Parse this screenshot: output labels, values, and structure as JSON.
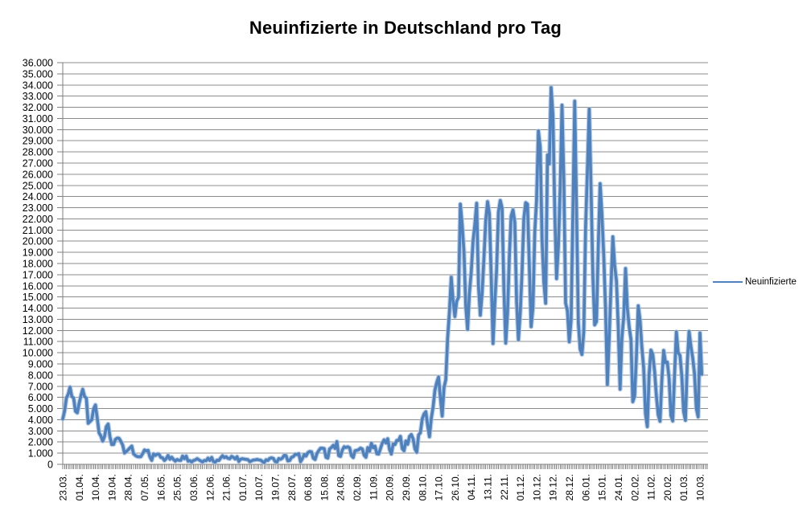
{
  "title": "Neuinfizierte in Deutschland pro Tag",
  "legend": {
    "label": "Neuinfizierte"
  },
  "colors": {
    "line": "#4F81BD",
    "line_halo": "#A9C2E1",
    "gridline": "#8C8C8C",
    "axis": "#7F7F7F",
    "text": "#000000",
    "background": "#FFFFFF"
  },
  "chart_data": {
    "type": "line",
    "title": "Neuinfizierte in Deutschland pro Tag",
    "xlabel": "",
    "ylabel": "",
    "ylim": [
      0,
      36000
    ],
    "y_tick_step": 1000,
    "y_tick_format": "german-thousands-dot",
    "grid": "horizontal-major",
    "legend_position": "right",
    "x_label_every": 9,
    "x_tick_labels": [
      "23.03.",
      "01.04.",
      "10.04.",
      "19.04.",
      "28.04.",
      "07.05.",
      "16.05.",
      "25.05.",
      "03.06.",
      "12.06.",
      "21.06.",
      "01.07.",
      "10.07.",
      "19.07.",
      "28.07.",
      "06.08.",
      "15.08.",
      "24.08.",
      "02.09.",
      "11.09.",
      "20.09.",
      "29.09.",
      "08.10.",
      "17.10.",
      "26.10.",
      "04.11.",
      "13.11.",
      "22.11.",
      "01.12.",
      "10.12.",
      "19.12.",
      "28.12.",
      "06.01.",
      "15.01.",
      "24.01.",
      "02.02.",
      "11.02.",
      "20.02.",
      "01.03.",
      "10.03."
    ],
    "series": [
      {
        "name": "Neuinfizierte",
        "values": [
          4062,
          4764,
          5940,
          6294,
          6922,
          6082,
          5936,
          4751,
          4615,
          5453,
          6156,
          6724,
          6082,
          5936,
          3677,
          3834,
          4003,
          4974,
          5323,
          4133,
          2821,
          2537,
          2082,
          2486,
          3380,
          3609,
          2458,
          1775,
          1785,
          2237,
          2352,
          2337,
          2055,
          1737,
          1018,
          1144,
          1304,
          1478,
          1639,
          945,
          793,
          697,
          679,
          685,
          947,
          1284,
          1209,
          1251,
          667,
          357,
          933,
          798,
          913,
          913,
          620,
          583,
          342,
          513,
          797,
          460,
          638,
          431,
          289,
          432,
          362,
          353,
          741,
          507,
          738,
          286,
          333,
          213,
          342,
          394,
          507,
          407,
          301,
          214,
          350,
          318,
          555,
          348,
          622,
          247,
          192,
          378,
          345,
          580,
          770,
          601,
          687,
          537,
          503,
          712,
          630,
          477,
          687,
          256,
          466,
          503,
          466,
          446,
          422,
          239,
          312,
          390,
          397,
          442,
          395,
          378,
          248,
          159,
          412,
          351,
          534,
          583,
          529,
          249,
          207,
          522,
          454,
          569,
          815,
          781,
          305,
          340,
          633,
          684,
          902,
          870,
          955,
          240,
          509,
          879,
          741,
          1045,
          1147,
          1122,
          555,
          436,
          966,
          1226,
          1445,
          1449,
          1415,
          625,
          561,
          1390,
          1510,
          1707,
          1427,
          2034,
          782,
          711,
          1278,
          1576,
          1507,
          1571,
          1479,
          785,
          610,
          1218,
          1256,
          1311,
          1453,
          1378,
          814,
          633,
          1499,
          1176,
          1892,
          1484,
          1630,
          948,
          927,
          1407,
          1901,
          2194,
          1916,
          2297,
          1345,
          922,
          1821,
          1769,
          2143,
          2153,
          2507,
          1411,
          1219,
          2089,
          1798,
          2503,
          2673,
          2279,
          1382,
          1084,
          2639,
          2828,
          4058,
          4516,
          4721,
          3483,
          2467,
          4122,
          5132,
          6638,
          7334,
          7830,
          5984,
          4325,
          6868,
          7595,
          11287,
          13692,
          16774,
          14714,
          13243,
          14614,
          14964,
          23320,
          21500,
          19059,
          14177,
          12097,
          15352,
          17214,
          19990,
          21506,
          23399,
          16017,
          13363,
          15332,
          18487,
          21866,
          23542,
          22461,
          16947,
          10824,
          14419,
          17561,
          22609,
          23648,
          22964,
          15741,
          10864,
          13554,
          18633,
          22268,
          22806,
          21695,
          14611,
          11169,
          13604,
          17270,
          22046,
          23449,
          23318,
          17767,
          12332,
          14054,
          20815,
          23679,
          29875,
          28438,
          20200,
          16362,
          14432,
          27728,
          26923,
          33777,
          31300,
          22771,
          16643,
          19528,
          24740,
          32195,
          25533,
          14455,
          13755,
          10976,
          12892,
          22459,
          32552,
          22924,
          12690,
          10315,
          9847,
          11897,
          21237,
          26391,
          31849,
          24694,
          16946,
          12497,
          12802,
          19600,
          25164,
          22368,
          18678,
          13882,
          7141,
          11369,
          15974,
          20398,
          17862,
          16417,
          12257,
          6729,
          11329,
          13202,
          17553,
          14022,
          12321,
          11192,
          5608,
          6114,
          9705,
          14211,
          12908,
          10485,
          8616,
          4535,
          3379,
          8072,
          10237,
          9860,
          8354,
          6114,
          4426,
          3856,
          7556,
          10207,
          9113,
          9164,
          7676,
          4369,
          3883,
          8007,
          11869,
          9997,
          9762,
          7890,
          4732,
          3943,
          9019,
          11912,
          10580,
          9557,
          8103,
          5011,
          4252,
          11780,
          8071
        ]
      }
    ]
  }
}
